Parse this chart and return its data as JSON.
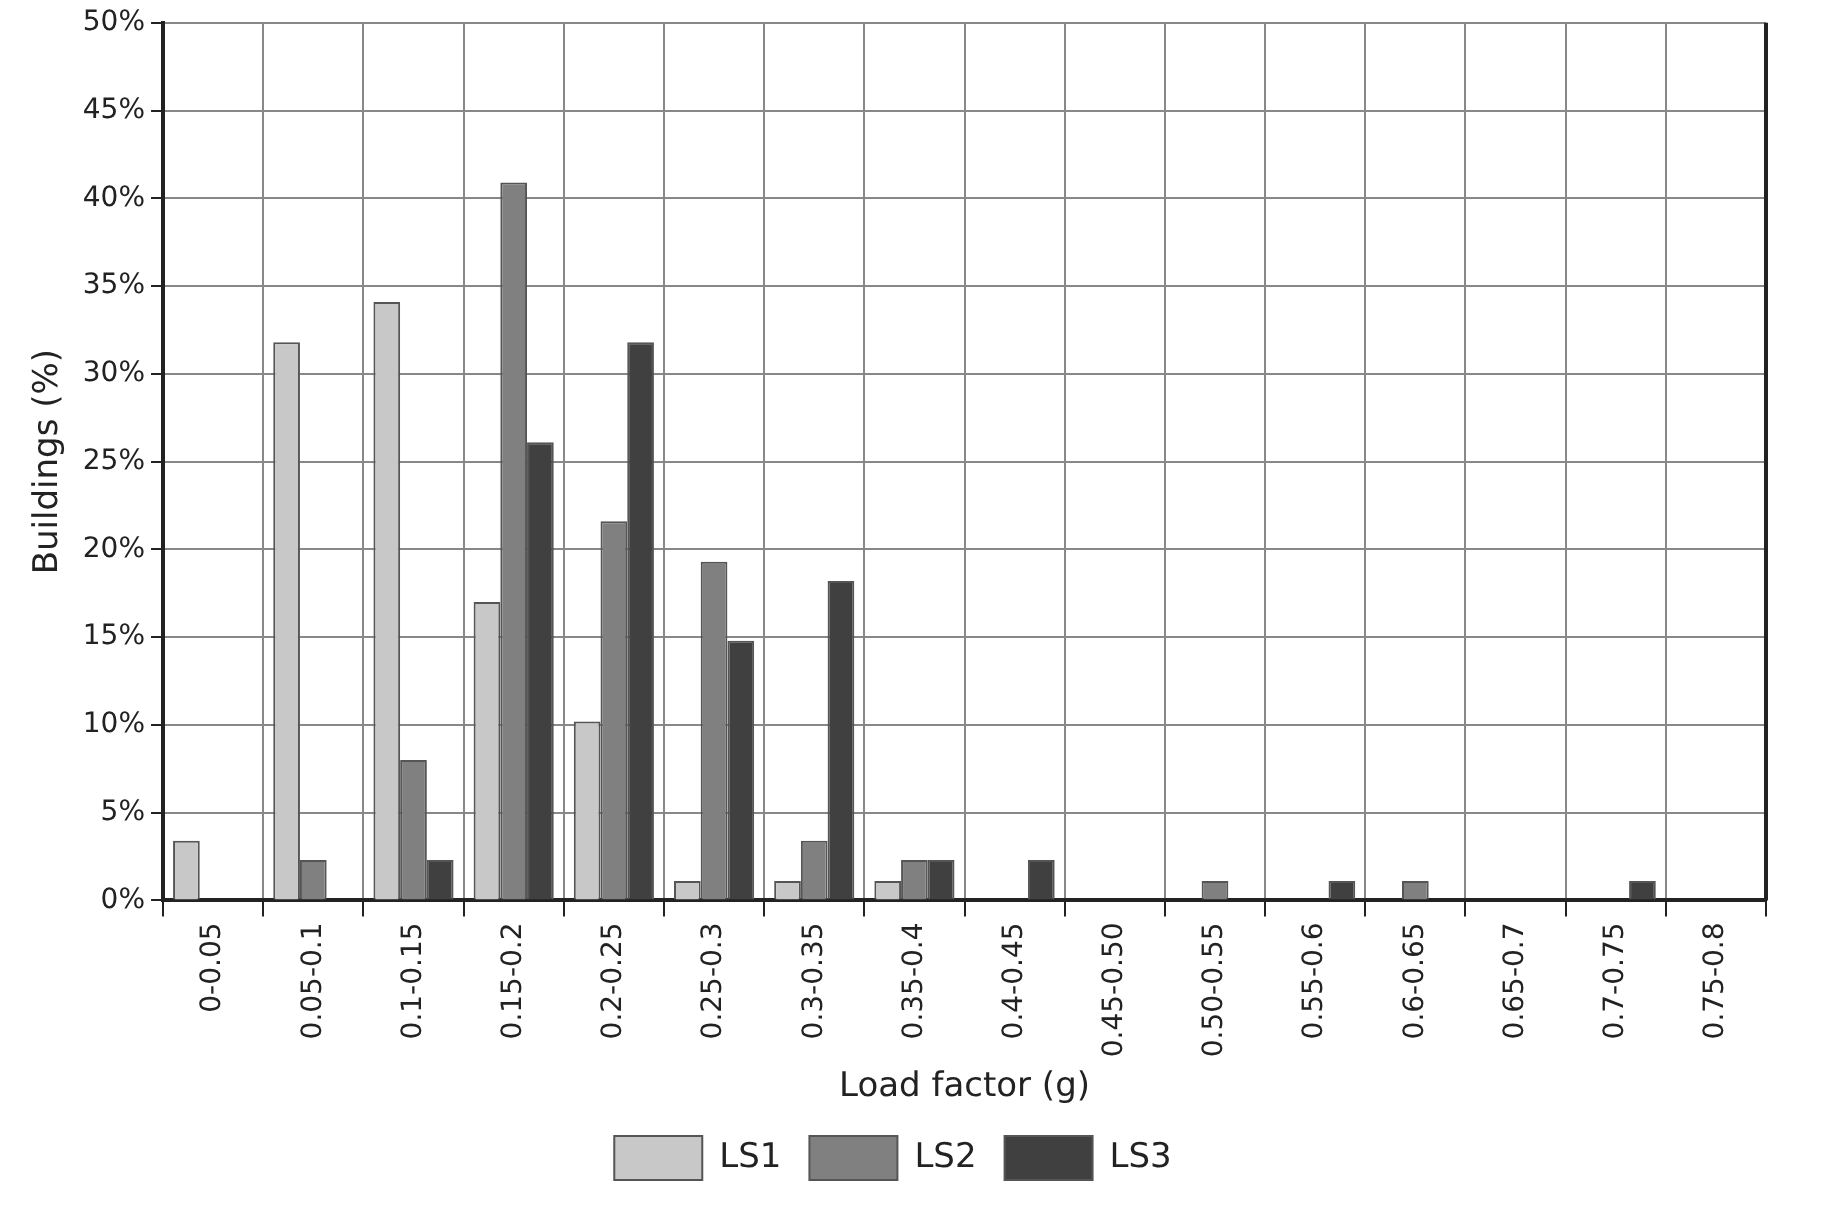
{
  "chart_data": {
    "type": "bar",
    "xlabel": "Load factor (g)",
    "ylabel": "Buildings (%)",
    "categories": [
      "0-0.05",
      "0.05-0.1",
      "0.1-0.15",
      "0.15-0.2",
      "0.2-0.25",
      "0.25-0.3",
      "0.3-0.35",
      "0.35-0.4",
      "0.4-0.45",
      "0.45-0.50",
      "0.50-0.55",
      "0.55-0.6",
      "0.6-0.65",
      "0.65-0.7",
      "0.7-0.75",
      "0.75-0.8"
    ],
    "series": [
      {
        "name": "LS1",
        "color": "#c8c8c8",
        "values": [
          3.4,
          31.8,
          34.1,
          17.0,
          10.2,
          1.1,
          1.1,
          1.1,
          0,
          0,
          0,
          0,
          0,
          0,
          0,
          0
        ]
      },
      {
        "name": "LS2",
        "color": "#808080",
        "values": [
          0,
          2.3,
          8.0,
          40.9,
          21.6,
          19.3,
          3.4,
          2.3,
          0,
          0,
          1.1,
          0,
          1.1,
          0,
          0,
          0
        ]
      },
      {
        "name": "LS3",
        "color": "#404040",
        "values": [
          0,
          0,
          2.3,
          26.1,
          31.8,
          14.8,
          18.2,
          2.3,
          2.3,
          0,
          0,
          1.1,
          0,
          0,
          1.1,
          0
        ]
      }
    ],
    "ylim": [
      0,
      50
    ],
    "yticks": [
      {
        "value": 0,
        "label": "0%"
      },
      {
        "value": 5,
        "label": "5%"
      },
      {
        "value": 10,
        "label": "10%"
      },
      {
        "value": 15,
        "label": "15%"
      },
      {
        "value": 20,
        "label": "20%"
      },
      {
        "value": 25,
        "label": "25%"
      },
      {
        "value": 30,
        "label": "30%"
      },
      {
        "value": 35,
        "label": "35%"
      },
      {
        "value": 40,
        "label": "40%"
      },
      {
        "value": 45,
        "label": "45%"
      },
      {
        "value": 50,
        "label": "50%"
      }
    ],
    "grid": true,
    "legend": "bottom"
  }
}
